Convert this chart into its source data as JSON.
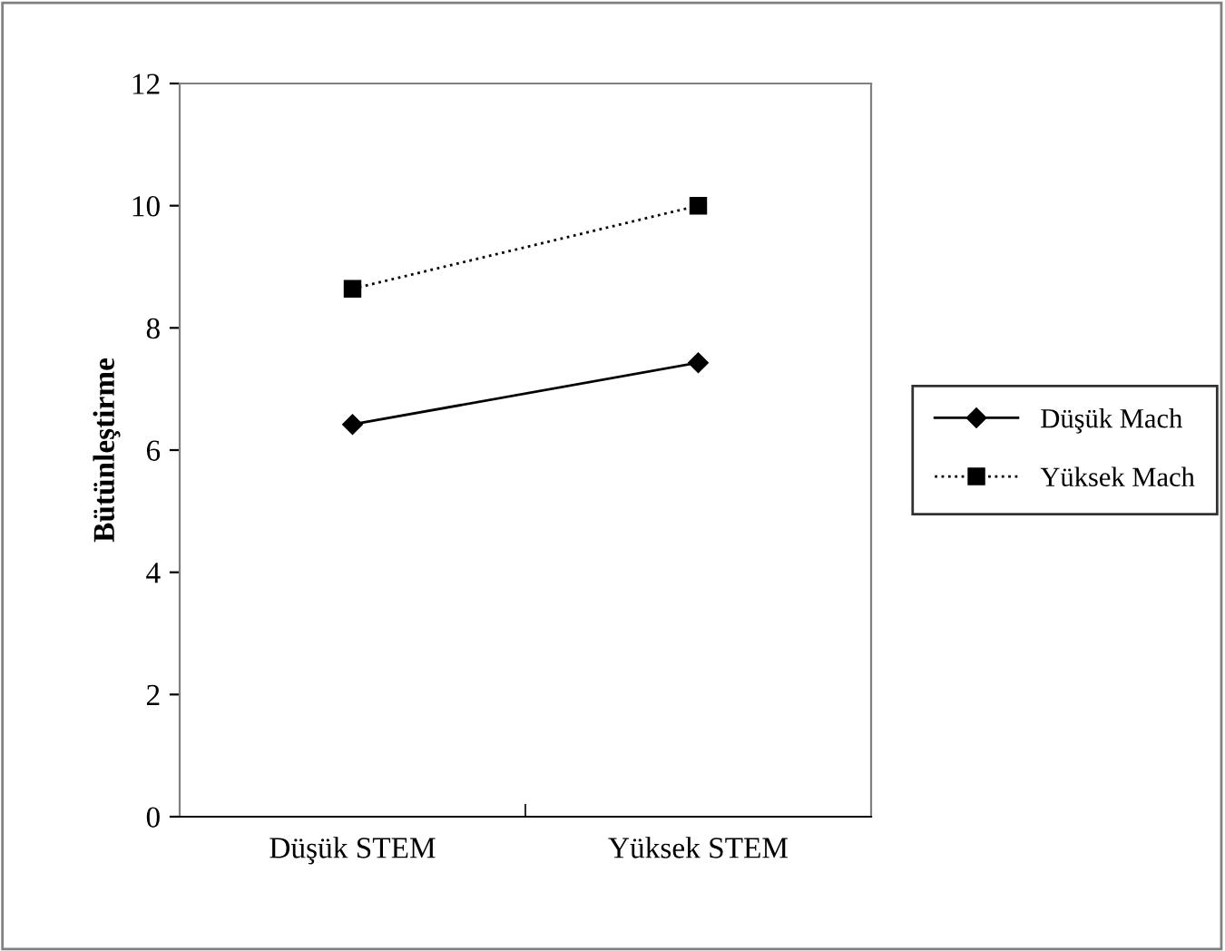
{
  "chart_data": {
    "type": "line",
    "ylabel": "Bütünleştirme",
    "categories": [
      "Düşük STEM",
      "Yüksek STEM"
    ],
    "series": [
      {
        "name": "Düşük Mach",
        "color": "#000000",
        "values": [
          6.42,
          7.43
        ],
        "marker": "diamond",
        "line_style": "solid"
      },
      {
        "name": "Yüksek Mach",
        "color": "#000000",
        "values": [
          8.64,
          10.0
        ],
        "marker": "square",
        "line_style": "dotted"
      }
    ],
    "ylim": [
      0,
      12
    ],
    "yticks": [
      0,
      2,
      4,
      6,
      8,
      10,
      12
    ],
    "grid": false,
    "legend": "right"
  }
}
